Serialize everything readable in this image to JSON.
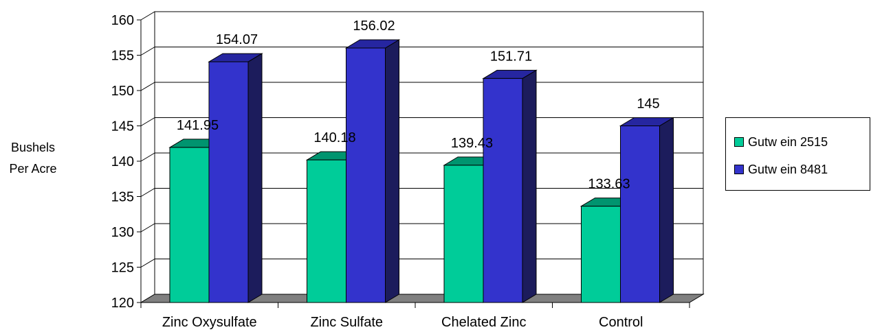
{
  "chart_data": {
    "type": "bar",
    "ylabel": [
      "Bushels",
      "Per Acre"
    ],
    "ylim": [
      120,
      160
    ],
    "yticks": [
      120,
      125,
      130,
      135,
      140,
      145,
      150,
      155,
      160
    ],
    "categories": [
      "Zinc Oxysulfate",
      "Zinc Sulfate",
      "Chelated Zinc",
      "Control"
    ],
    "series": [
      {
        "name": "Gutw ein 2515",
        "values": [
          141.95,
          140.18,
          139.43,
          133.63
        ],
        "labels": [
          "141.95",
          "140.18",
          "139.43",
          "133.63"
        ]
      },
      {
        "name": "Gutw ein 8481",
        "values": [
          154.07,
          156.02,
          151.71,
          145
        ],
        "labels": [
          "154.07",
          "156.02",
          "151.71",
          "145"
        ]
      }
    ],
    "grid": true,
    "legend_position": "right",
    "three_d": true,
    "colors": {
      "series": [
        "#00CC99",
        "#3333CC"
      ],
      "series_side": [
        "#006B51",
        "#1C1C5C"
      ],
      "series_top": [
        "#00946F",
        "#2626A0"
      ],
      "floor": "#808080"
    }
  }
}
